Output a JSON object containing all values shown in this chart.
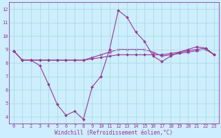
{
  "title": "",
  "xlabel": "Windchill (Refroidissement éolien,°C)",
  "ylabel": "",
  "background_color": "#cceeff",
  "grid_color": "#aadddd",
  "line_color": "#993399",
  "marker_color": "#993399",
  "xlim": [
    -0.5,
    23.5
  ],
  "ylim": [
    3.5,
    12.5
  ],
  "xticks": [
    0,
    1,
    2,
    3,
    4,
    5,
    6,
    7,
    8,
    9,
    10,
    11,
    12,
    13,
    14,
    15,
    16,
    17,
    18,
    19,
    20,
    21,
    22,
    23
  ],
  "yticks": [
    4,
    5,
    6,
    7,
    8,
    9,
    10,
    11,
    12
  ],
  "series": [
    [
      8.9,
      8.2,
      8.2,
      7.8,
      6.4,
      4.9,
      4.1,
      4.4,
      3.8,
      6.2,
      7.0,
      9.0,
      11.9,
      11.4,
      10.3,
      9.6,
      8.5,
      8.1,
      8.5,
      8.8,
      9.0,
      9.2,
      9.1,
      8.6
    ],
    [
      8.9,
      8.2,
      8.2,
      8.2,
      8.2,
      8.2,
      8.2,
      8.2,
      8.2,
      8.3,
      8.4,
      8.5,
      8.6,
      8.6,
      8.6,
      8.6,
      8.6,
      8.6,
      8.7,
      8.8,
      8.9,
      9.0,
      9.1,
      8.6
    ],
    [
      8.9,
      8.2,
      8.2,
      8.2,
      8.2,
      8.2,
      8.2,
      8.2,
      8.2,
      8.4,
      8.6,
      8.8,
      9.0,
      9.0,
      9.0,
      9.0,
      8.8,
      8.5,
      8.6,
      8.7,
      8.8,
      8.9,
      9.0,
      8.6
    ]
  ],
  "xlabel_fontsize": 5.5,
  "tick_fontsize": 5.0,
  "linewidth": 0.8,
  "markersize": 2.0
}
